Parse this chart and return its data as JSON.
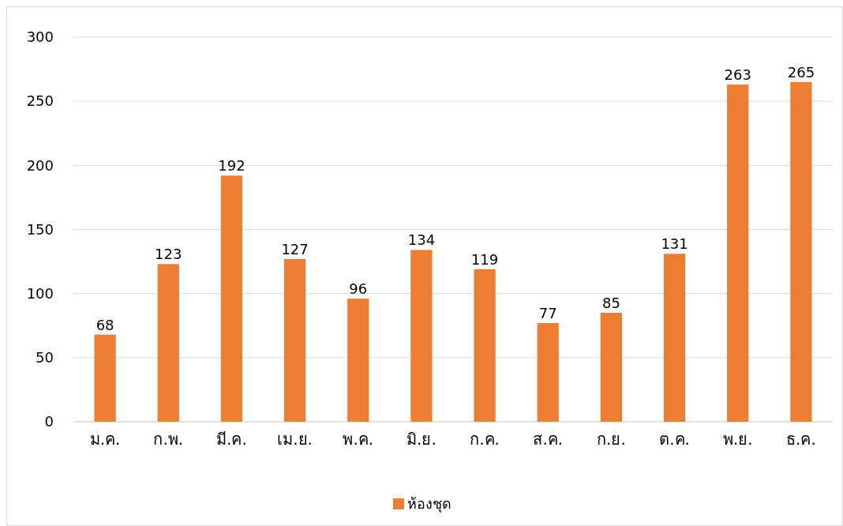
{
  "chart_data": {
    "type": "bar",
    "categories": [
      "ม.ค.",
      "ก.พ.",
      "มี.ค.",
      "เม.ย.",
      "พ.ค.",
      "มิ.ย.",
      "ก.ค.",
      "ส.ค.",
      "ก.ย.",
      "ต.ค.",
      "พ.ย.",
      "ธ.ค."
    ],
    "series": [
      {
        "name": "ห้องชุด",
        "color": "#ed7d31",
        "values": [
          68,
          123,
          192,
          127,
          96,
          134,
          119,
          77,
          85,
          131,
          263,
          265
        ]
      }
    ],
    "ylim": [
      0,
      300
    ],
    "yticks": [
      0,
      50,
      100,
      150,
      200,
      250,
      300
    ],
    "grid": "y",
    "legend": "bottom",
    "data_labels": true
  }
}
